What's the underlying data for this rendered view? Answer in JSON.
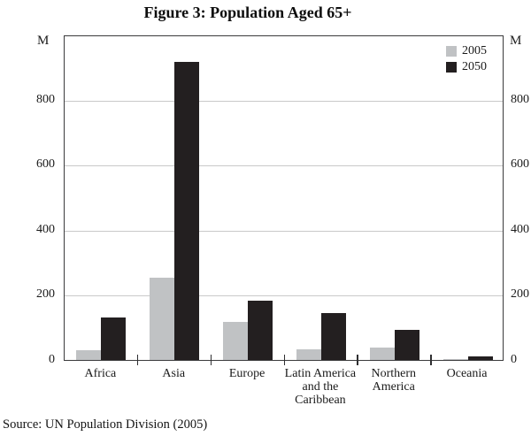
{
  "chart_data": {
    "type": "bar",
    "title": "Figure 3: Population Aged 65+",
    "unit_label": "M",
    "xlabel": "",
    "ylabel": "M",
    "categories": [
      "Africa",
      "Asia",
      "Europe",
      "Latin America and the Caribbean",
      "Northern America",
      "Oceania"
    ],
    "series": [
      {
        "name": "2005",
        "color": "#c0c2c4",
        "values": [
          30,
          253,
          116,
          33,
          38,
          3
        ]
      },
      {
        "name": "2050",
        "color": "#231f20",
        "values": [
          130,
          915,
          181,
          145,
          92,
          10
        ]
      }
    ],
    "y_ticks": [
      0,
      200,
      400,
      600,
      800
    ],
    "ylim": [
      0,
      1000
    ],
    "grid": "horizontal-only",
    "legend_position": "top-right-inside"
  },
  "source_note": "Source: UN Population Division (2005)",
  "colors": {
    "bar_2005": "#c0c2c4",
    "bar_2050": "#231f20",
    "gridline": "#c9c9c9",
    "frame": "#3a3a3c",
    "background": "#ffffff"
  }
}
